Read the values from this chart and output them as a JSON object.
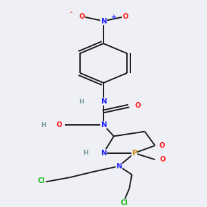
{
  "background_color": "#eef0f5",
  "bond_color": "#1a1a1a",
  "atom_colors": {
    "N": "#2020ff",
    "O": "#ff2020",
    "P": "#cc8800",
    "Cl": "#22bb22",
    "H": "#7a9a9a",
    "C": "#1a1a1a"
  },
  "figsize": [
    3.0,
    3.0
  ],
  "dpi": 100,
  "lw": 1.4,
  "fs": 7.2
}
